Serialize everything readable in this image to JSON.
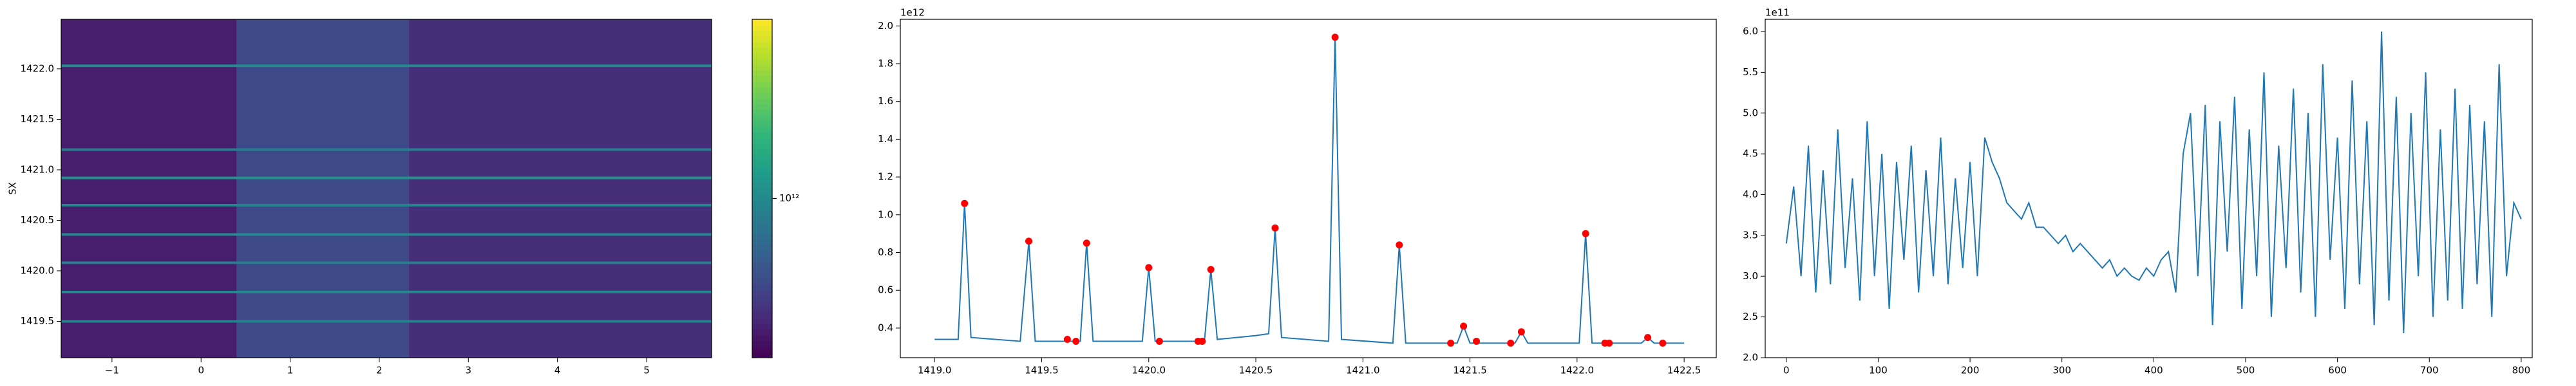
{
  "chart_data": [
    {
      "type": "heatmap",
      "ylabel": "SX",
      "xlim": [
        -1.57,
        5.73
      ],
      "ylim": [
        1419.14,
        1422.49
      ],
      "xticks": [
        {
          "value": -1,
          "label": "−1"
        },
        0,
        1,
        2,
        3,
        4,
        5
      ],
      "yticks": [
        1419.5,
        {
          "value": 1420.0,
          "label": "1420.0"
        },
        1420.5,
        {
          "value": 1421.0,
          "label": "1421.0"
        },
        1421.5,
        {
          "value": 1422.0,
          "label": "1422.0"
        }
      ],
      "colormap": "viridis",
      "color_scale": "log",
      "clim": [
        540000000000,
        2000000000000
      ],
      "colorbar_ticks": [
        {
          "value": 1000000000000,
          "label": "10¹²"
        }
      ],
      "column_bands": [
        {
          "x": [
            -1.57,
            0.4
          ],
          "value": 600000000000
        },
        {
          "x": [
            0.4,
            2.33
          ],
          "value": 720000000000
        },
        {
          "x": [
            2.33,
            5.73
          ],
          "value": 640000000000
        }
      ],
      "bright_rows": {
        "y": [
          1422.03,
          1421.2,
          1420.92,
          1420.65,
          1420.36,
          1420.08,
          1419.79,
          1419.5
        ],
        "values": [
          1000000000000,
          950000000000,
          1050000000000,
          980000000000,
          1000000000000,
          950000000000,
          1000000000000,
          960000000000
        ]
      }
    },
    {
      "type": "line",
      "offset_text": "1e12",
      "xlim": [
        1418.84,
        1422.65
      ],
      "ylim": [
        0.243,
        2.035
      ],
      "xticks": [
        {
          "value": 1419.0,
          "label": "1419.0"
        },
        1419.5,
        {
          "value": 1420.0,
          "label": "1420.0"
        },
        1420.5,
        {
          "value": 1421.0,
          "label": "1421.0"
        },
        1421.5,
        {
          "value": 1422.0,
          "label": "1422.0"
        },
        1422.5
      ],
      "yticks": [
        0.4,
        0.6,
        0.8,
        {
          "value": 1.0,
          "label": "1.0"
        },
        1.2,
        1.4,
        1.6,
        1.8,
        {
          "value": 2.0,
          "label": "2.0"
        }
      ],
      "series": [
        {
          "color": "#1f77b4",
          "style": "line",
          "x": [
            1419.0,
            1419.11,
            1419.14,
            1419.17,
            1419.4,
            1419.44,
            1419.47,
            1419.68,
            1419.71,
            1419.74,
            1419.97,
            1420.0,
            1420.03,
            1420.26,
            1420.29,
            1420.32,
            1420.5,
            1420.56,
            1420.59,
            1420.62,
            1420.84,
            1420.87,
            1420.9,
            1421.14,
            1421.17,
            1421.2,
            1421.44,
            1421.47,
            1421.5,
            1421.71,
            1421.74,
            1421.77,
            1422.01,
            1422.04,
            1422.07,
            1422.3,
            1422.33,
            1422.36,
            1422.5
          ],
          "values": [
            0.34,
            0.34,
            1.06,
            0.35,
            0.33,
            0.86,
            0.33,
            0.33,
            0.85,
            0.33,
            0.33,
            0.72,
            0.33,
            0.33,
            0.71,
            0.34,
            0.36,
            0.37,
            0.93,
            0.35,
            0.33,
            1.94,
            0.34,
            0.32,
            0.84,
            0.32,
            0.32,
            0.41,
            0.32,
            0.32,
            0.38,
            0.32,
            0.32,
            0.9,
            0.32,
            0.32,
            0.35,
            0.32,
            0.32
          ]
        },
        {
          "color": "#ff0000",
          "style": "markers",
          "x": [
            1419.14,
            1419.44,
            1419.62,
            1419.66,
            1419.71,
            1420.0,
            1420.05,
            1420.23,
            1420.25,
            1420.29,
            1420.59,
            1420.87,
            1421.17,
            1421.41,
            1421.47,
            1421.53,
            1421.69,
            1421.74,
            1422.04,
            1422.13,
            1422.15,
            1422.33,
            1422.4
          ],
          "values": [
            1.06,
            0.86,
            0.34,
            0.33,
            0.85,
            0.72,
            0.33,
            0.33,
            0.33,
            0.71,
            0.93,
            1.94,
            0.84,
            0.32,
            0.41,
            0.33,
            0.32,
            0.38,
            0.9,
            0.32,
            0.32,
            0.35,
            0.32
          ]
        }
      ]
    },
    {
      "type": "line",
      "offset_text": "1e11",
      "xlim": [
        -23,
        812
      ],
      "ylim": [
        2.0,
        6.15
      ],
      "xticks": [
        0,
        100,
        200,
        300,
        400,
        500,
        600,
        700,
        800
      ],
      "yticks": [
        {
          "value": 2.0,
          "label": "2.0"
        },
        2.5,
        {
          "value": 3.0,
          "label": "3.0"
        },
        3.5,
        {
          "value": 4.0,
          "label": "4.0"
        },
        4.5,
        {
          "value": 5.0,
          "label": "5.0"
        },
        5.5,
        {
          "value": 6.0,
          "label": "6.0"
        }
      ],
      "series": [
        {
          "color": "#1f77b4",
          "style": "line",
          "x": [
            0,
            8,
            16,
            24,
            32,
            40,
            48,
            56,
            64,
            72,
            80,
            88,
            96,
            104,
            112,
            120,
            128,
            136,
            144,
            152,
            160,
            168,
            176,
            184,
            192,
            200,
            208,
            216,
            224,
            232,
            240,
            248,
            256,
            264,
            272,
            280,
            288,
            296,
            304,
            312,
            320,
            328,
            336,
            344,
            352,
            360,
            368,
            376,
            384,
            392,
            400,
            408,
            416,
            424,
            432,
            440,
            448,
            456,
            464,
            472,
            480,
            488,
            496,
            504,
            512,
            520,
            528,
            536,
            544,
            552,
            560,
            568,
            576,
            584,
            592,
            600,
            608,
            616,
            624,
            632,
            640,
            648,
            656,
            664,
            672,
            680,
            688,
            696,
            704,
            712,
            720,
            728,
            736,
            744,
            752,
            760,
            768,
            776,
            784,
            792,
            800
          ],
          "values": [
            3.4,
            4.1,
            3.0,
            4.6,
            2.8,
            4.3,
            2.9,
            4.8,
            3.1,
            4.2,
            2.7,
            4.9,
            3.0,
            4.5,
            2.6,
            4.4,
            3.2,
            4.6,
            2.8,
            4.3,
            3.0,
            4.7,
            2.9,
            4.2,
            3.1,
            4.4,
            3.0,
            4.7,
            4.4,
            4.2,
            3.9,
            3.8,
            3.7,
            3.9,
            3.6,
            3.6,
            3.5,
            3.4,
            3.5,
            3.3,
            3.4,
            3.3,
            3.2,
            3.1,
            3.2,
            3.0,
            3.1,
            3.0,
            2.95,
            3.1,
            3.0,
            3.2,
            3.3,
            2.8,
            4.5,
            5.0,
            3.0,
            5.1,
            2.4,
            4.9,
            3.3,
            5.2,
            2.6,
            4.8,
            3.0,
            5.5,
            2.5,
            4.6,
            3.1,
            5.3,
            2.8,
            5.0,
            2.5,
            5.6,
            3.2,
            4.7,
            2.6,
            5.4,
            2.9,
            4.9,
            2.4,
            6.0,
            2.7,
            5.2,
            2.3,
            5.0,
            3.0,
            5.5,
            2.5,
            4.8,
            2.7,
            5.3,
            2.6,
            5.1,
            2.9,
            4.9,
            2.5,
            5.6,
            3.0,
            3.9,
            3.7
          ]
        }
      ]
    }
  ]
}
